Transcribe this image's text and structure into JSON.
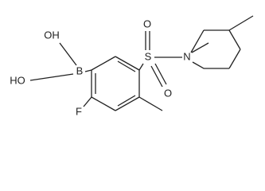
{
  "atoms": {
    "oh": "OH",
    "ho": "HO",
    "b": "B",
    "f": "F",
    "s": "S",
    "o_top": "O",
    "o_bottom": "O",
    "n": "N"
  }
}
